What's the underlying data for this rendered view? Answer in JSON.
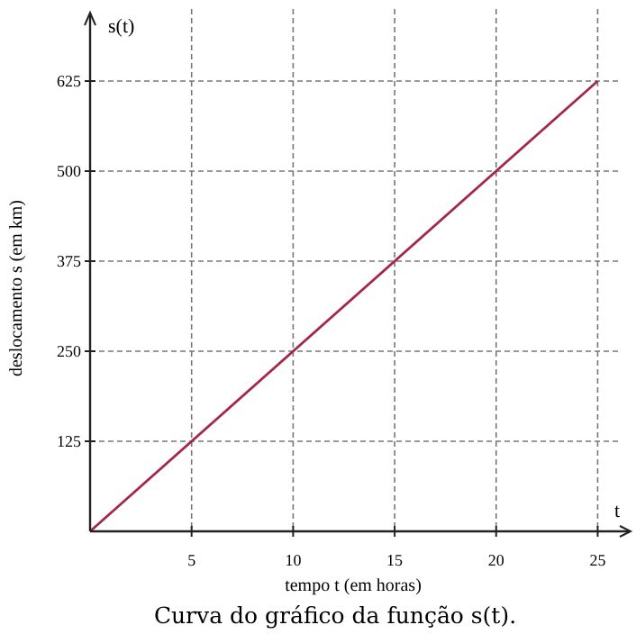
{
  "chart_data": {
    "type": "line",
    "title": "Curva do gráfico da função s(t).",
    "xlabel": "tempo t (em horas)",
    "ylabel": "deslocamento s (em km)",
    "annotations": [
      "s(t)",
      "t"
    ],
    "x": [
      0,
      25
    ],
    "series": [
      {
        "color": "#a3284a",
        "values": [
          0,
          625
        ]
      }
    ],
    "xlim": [
      0,
      26
    ],
    "ylim": [
      0,
      725
    ],
    "xticks": [
      5,
      10,
      15,
      20,
      25
    ],
    "yticks": [
      125,
      250,
      375,
      500,
      625
    ],
    "grid": true,
    "marker": "none",
    "line_style": "solid"
  }
}
